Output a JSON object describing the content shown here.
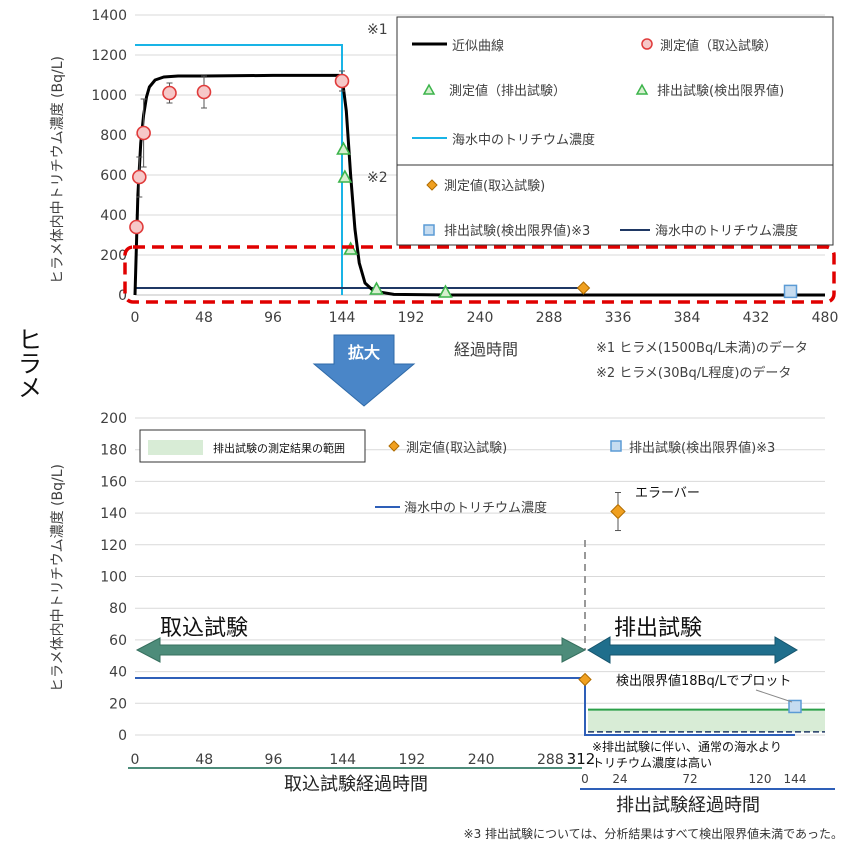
{
  "side_label": "ヒラメ",
  "arrow_label": "拡大",
  "footnote": "※3 排出試験については、分析結果はすべて検出限界値未満であった。",
  "colors": {
    "fit": "#000000",
    "uptake_red": "#e03b3b",
    "green": "#3cb44b",
    "seawater_cyan": "#19b4e6",
    "orange": "#f0a020",
    "blue_sq": "#5b9bd5",
    "navy": "#1f3864",
    "highlight": "#e00000",
    "band_green": "#d8ecd6",
    "uptake_arrow": "#4d8c7a",
    "excretion_arrow": "#1f6e8c"
  },
  "chart_data": [
    {
      "type": "scatter",
      "ylabel": "ヒラメ体内中トリチウム濃度 (Bq/L)",
      "xlabel": "経過時間",
      "xlim": [
        0,
        480
      ],
      "ylim": [
        0,
        1400
      ],
      "xticks": [
        "0",
        "48",
        "96",
        "144",
        "192",
        "240",
        "288",
        "336",
        "384",
        "432",
        "480"
      ],
      "yticks": [
        "0",
        "200",
        "400",
        "600",
        "800",
        "1000",
        "1200",
        "1400"
      ],
      "marker_1": "※1",
      "marker_2": "※2",
      "legend_1": {
        "fit": "近似曲線",
        "uptake": "測定値（取込試験）",
        "excretion": "測定値（排出試験）",
        "excretion_dl": "排出試験(検出限界値)",
        "seawater": "海水中のトリチウム濃度"
      },
      "legend_2": {
        "uptake": "測定値(取込試験)",
        "excretion_dl": "排出試験(検出限界値)※3",
        "seawater": "海水中のトリチウム濃度"
      },
      "notes": [
        "※1 ヒラメ(1500Bq/L未満)のデータ",
        "※2 ヒラメ(30Bq/L程度)のデータ"
      ],
      "series": [
        {
          "name": "近似曲線",
          "x": [
            0,
            2,
            4,
            6,
            8,
            10,
            14,
            20,
            30,
            48,
            96,
            142,
            144,
            147,
            150,
            153,
            156,
            160,
            166,
            180,
            220,
            300,
            480
          ],
          "y": [
            0,
            500,
            760,
            900,
            990,
            1040,
            1075,
            1090,
            1095,
            1095,
            1098,
            1098,
            1090,
            920,
            600,
            330,
            160,
            60,
            20,
            3,
            0,
            0,
            0
          ]
        },
        {
          "name": "測定値（取込試験）",
          "x": [
            1,
            3,
            6,
            24,
            48,
            144
          ],
          "y": [
            340,
            590,
            810,
            1010,
            1015,
            1070
          ],
          "err": [
            0,
            100,
            170,
            50,
            80,
            50
          ]
        },
        {
          "name": "測定値（排出試験）",
          "x": [
            145,
            146,
            150,
            168,
            216
          ],
          "y": [
            730,
            590,
            230,
            30,
            15
          ]
        },
        {
          "name": "海水中のトリチウム濃度 (cyan)",
          "x": [
            0,
            144,
            144
          ],
          "y": [
            1250,
            1250,
            0
          ]
        },
        {
          "name": "測定値(取込試験) (orange)",
          "x": [
            312
          ],
          "y": [
            35
          ]
        },
        {
          "name": "排出試験(検出限界値)※3",
          "x": [
            456
          ],
          "y": [
            18
          ]
        },
        {
          "name": "海水中のトリチウム濃度 (navy)",
          "x": [
            0,
            312,
            312,
            480
          ],
          "y": [
            35,
            35,
            0,
            0
          ]
        }
      ]
    },
    {
      "type": "scatter",
      "ylabel": "ヒラメ体内中トリチウム濃度 (Bq/L)",
      "ylim": [
        0,
        200
      ],
      "yticks": [
        "0",
        "20",
        "40",
        "60",
        "80",
        "100",
        "120",
        "140",
        "160",
        "180",
        "200"
      ],
      "uptake_xlabel": "取込試験経過時間",
      "uptake_xticks": [
        "0",
        "48",
        "96",
        "144",
        "192",
        "240",
        "288",
        "312"
      ],
      "excretion_xlabel": "排出試験経過時間",
      "excretion_xticks": [
        "0",
        "24",
        "72",
        "120",
        "144"
      ],
      "legend": {
        "band": "排出試験の測定結果の範囲",
        "uptake": "測定値(取込試験)",
        "excretion_dl": "排出試験(検出限界値)※3",
        "seawater": "海水中のトリチウム濃度"
      },
      "errorbar_label": "エラーバー",
      "phase_uptake": "取込試験",
      "phase_excretion": "排出試験",
      "dl_note": "検出限界値18Bq/Lでプロット",
      "seawater_note": "※排出試験に伴い、通常の海水より\nトリチウム濃度は高い",
      "legend_example_value": 141,
      "legend_example_err": 12,
      "series": [
        {
          "name": "海水中のトリチウム濃度",
          "x_hours_total": [
            0,
            312,
            312,
            456
          ],
          "y": [
            36,
            36,
            0,
            0
          ]
        },
        {
          "name": "測定値(取込試験)",
          "x_hours_total": [
            312
          ],
          "y": [
            35
          ]
        },
        {
          "name": "排出試験(検出限界値)※3",
          "x_hours_total": [
            456
          ],
          "y": [
            18
          ]
        },
        {
          "name": "排出試験の測定結果の範囲",
          "y_range": [
            2,
            16
          ]
        }
      ]
    }
  ]
}
